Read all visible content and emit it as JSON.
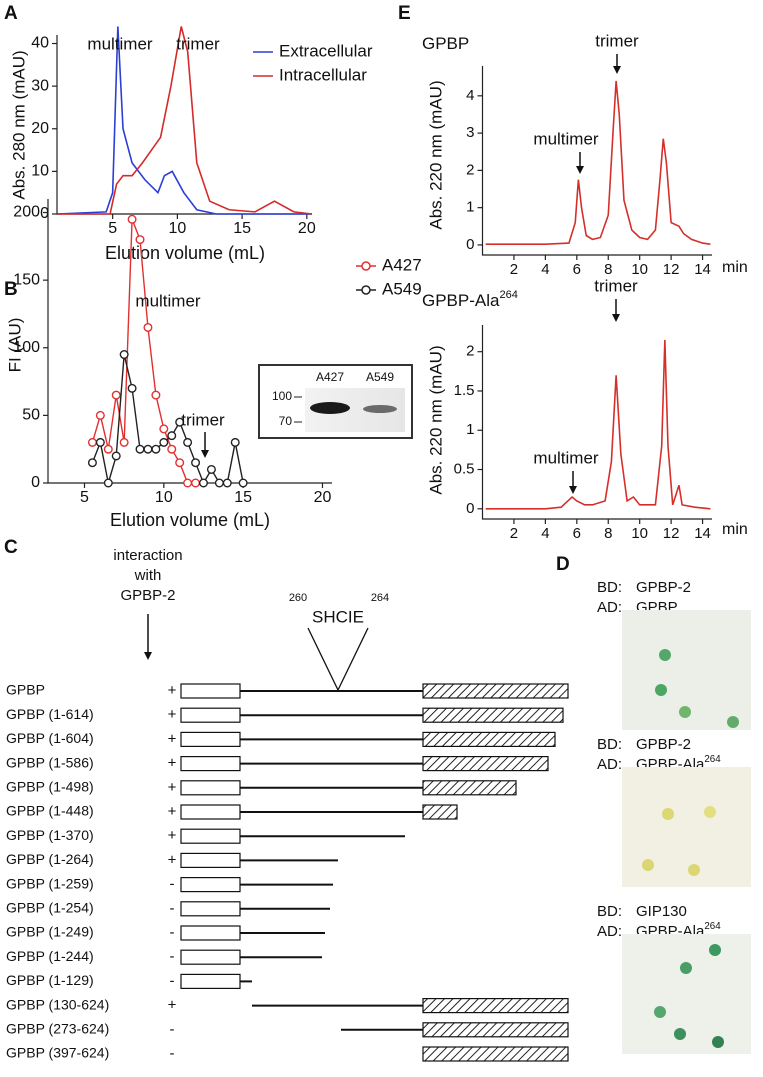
{
  "panel_labels": [
    "A",
    "B",
    "C",
    "D",
    "E"
  ],
  "chart_data": [
    {
      "type": "line",
      "y_label": "Abs. 280 nm (mAU)",
      "x_label": "Elution volume (mL)",
      "annotations": [
        "multimer",
        "trimer"
      ],
      "xlim": [
        0.7,
        20.4
      ],
      "ylim": [
        0,
        42
      ],
      "xticks": [
        5,
        10,
        15,
        20
      ],
      "yticks": [
        0,
        10,
        20,
        30,
        40
      ],
      "legend": "upper right",
      "series": [
        {
          "name": "Extracellular",
          "color": "#2b3fd6",
          "x": [
            0.7,
            4.5,
            5,
            5.4,
            5.8,
            6.5,
            7.5,
            8.5,
            9,
            9.6,
            10.5,
            11.5,
            13,
            20.4
          ],
          "values": [
            0,
            0.5,
            5,
            44,
            20,
            12,
            8,
            5,
            9,
            10,
            5,
            1,
            0,
            0
          ]
        },
        {
          "name": "Intracellular",
          "color": "#d42a2a",
          "x": [
            0.7,
            4.8,
            5.3,
            5.8,
            6.5,
            7.3,
            8,
            8.7,
            9.5,
            10.3,
            10.8,
            11.5,
            12.5,
            14,
            16,
            17.5,
            19,
            20.4
          ],
          "values": [
            0,
            0,
            7,
            9,
            9,
            12,
            15,
            18,
            30,
            44,
            38,
            12,
            3,
            1,
            0.5,
            3,
            0.5,
            0
          ]
        }
      ]
    },
    {
      "type": "line",
      "markers": true,
      "y_label": "FI (AU)",
      "x_label": "Elution volume (mL)",
      "annotations": [
        "multimer",
        "trimer"
      ],
      "xlim": [
        2.7,
        20.6
      ],
      "ylim": [
        0,
        210
      ],
      "xticks": [
        5,
        10,
        15,
        20
      ],
      "yticks": [
        0,
        50,
        100,
        150,
        200
      ],
      "legend": "upper right",
      "inset": {
        "lanes": [
          "A427",
          "A549"
        ],
        "size_marks": [
          "100",
          "70"
        ]
      },
      "series": [
        {
          "name": "A427",
          "color": "#e03030",
          "x": [
            5.5,
            6,
            6.5,
            7,
            7.5,
            8,
            8.5,
            9,
            9.5,
            10,
            10.5,
            11,
            11.5,
            12
          ],
          "values": [
            30,
            50,
            25,
            65,
            30,
            195,
            180,
            115,
            65,
            40,
            25,
            15,
            0,
            0
          ]
        },
        {
          "name": "A549",
          "color": "#222222",
          "x": [
            5.5,
            6,
            6.5,
            7,
            7.5,
            8,
            8.5,
            9,
            9.5,
            10,
            10.5,
            11,
            11.5,
            12,
            12.5,
            13,
            13.5,
            14,
            14.5,
            15
          ],
          "values": [
            15,
            30,
            0,
            20,
            95,
            70,
            25,
            25,
            25,
            30,
            35,
            45,
            30,
            15,
            0,
            10,
            0,
            0,
            30,
            0
          ]
        }
      ]
    },
    {
      "type": "line",
      "title": {
        "text": "GPBP"
      },
      "y_label": "Abs. 220 nm (mAU)",
      "x_label": "min",
      "annotations": [
        "multimer",
        "trimer"
      ],
      "xlim": [
        0,
        14.6
      ],
      "ylim": [
        -0.27,
        4.8
      ],
      "xticks": [
        2,
        4,
        6,
        8,
        10,
        12,
        14
      ],
      "yticks": [
        0,
        1,
        2,
        3,
        4
      ],
      "series": [
        {
          "color": "#d4302a",
          "x": [
            0.2,
            2,
            4,
            5.5,
            5.9,
            6.1,
            6.3,
            6.6,
            7,
            7.5,
            8,
            8.3,
            8.5,
            8.7,
            9,
            9.5,
            10,
            10.5,
            11,
            11.3,
            11.5,
            11.7,
            12,
            12.5,
            12.8,
            13.3,
            14,
            14.5
          ],
          "values": [
            0.02,
            0.02,
            0.02,
            0.05,
            0.6,
            1.75,
            1,
            0.25,
            0.15,
            0.2,
            0.8,
            3,
            4.4,
            3.5,
            1.2,
            0.4,
            0.2,
            0.15,
            0.4,
            1.8,
            2.85,
            2.2,
            0.6,
            0.5,
            0.3,
            0.15,
            0.05,
            0.02
          ]
        }
      ]
    },
    {
      "type": "line",
      "title": {
        "text": "GPBP-Ala",
        "sup": "264"
      },
      "y_label": "Abs. 220 nm (mAU)",
      "x_label": "min",
      "annotations": [
        "multimer",
        "trimer"
      ],
      "xlim": [
        0,
        14.6
      ],
      "ylim": [
        -0.13,
        2.34
      ],
      "xticks": [
        2,
        4,
        6,
        8,
        10,
        12,
        14
      ],
      "yticks": [
        0,
        0.5,
        1,
        1.5,
        2
      ],
      "series": [
        {
          "color": "#d4302a",
          "x": [
            0.2,
            4,
            5,
            5.7,
            6,
            6.5,
            7,
            7.8,
            8.2,
            8.5,
            8.8,
            9.2,
            9.6,
            10,
            11,
            11.4,
            11.6,
            11.8,
            12.1,
            12.5,
            12.7,
            13.5,
            14.5
          ],
          "values": [
            0,
            0,
            0.02,
            0.15,
            0.1,
            0.05,
            0.05,
            0.1,
            0.6,
            1.7,
            0.7,
            0.1,
            0.15,
            0.05,
            0.05,
            0.8,
            2.15,
            0.8,
            0.05,
            0.3,
            0.05,
            0.02,
            0
          ]
        }
      ]
    }
  ],
  "panel_c": {
    "header": [
      "interaction",
      "with",
      "GPBP-2"
    ],
    "motif": "SHCIE",
    "motif_start": "260",
    "motif_end": "264",
    "rows": [
      {
        "label": "GPBP",
        "sign": "+"
      },
      {
        "label": "GPBP (1-614)",
        "sign": "+"
      },
      {
        "label": "GPBP (1-604)",
        "sign": "+"
      },
      {
        "label": "GPBP (1-586)",
        "sign": "+"
      },
      {
        "label": "GPBP (1-498)",
        "sign": "+"
      },
      {
        "label": "GPBP (1-448)",
        "sign": "+"
      },
      {
        "label": "GPBP (1-370)",
        "sign": "+"
      },
      {
        "label": "GPBP (1-264)",
        "sign": "+"
      },
      {
        "label": "GPBP (1-259)",
        "sign": "-"
      },
      {
        "label": "GPBP (1-254)",
        "sign": "-"
      },
      {
        "label": "GPBP (1-249)",
        "sign": "-"
      },
      {
        "label": "GPBP (1-244)",
        "sign": "-"
      },
      {
        "label": "GPBP (1-129)",
        "sign": "-"
      },
      {
        "label": "GPBP (130-624)",
        "sign": "+"
      },
      {
        "label": "GPBP (273-624)",
        "sign": "-"
      },
      {
        "label": "GPBP (397-624)",
        "sign": "-"
      }
    ]
  },
  "panel_d": {
    "bd_label": "BD:",
    "ad_label": "AD:",
    "blocks": [
      {
        "bd": "GPBP-2",
        "ad": {
          "text": "GPBP"
        }
      },
      {
        "bd": "GPBP-2",
        "ad": {
          "text": "GPBP-Ala",
          "sup": "264"
        }
      },
      {
        "bd": "GIP130",
        "ad": {
          "text": "GPBP-Ala",
          "sup": "264"
        }
      }
    ]
  }
}
